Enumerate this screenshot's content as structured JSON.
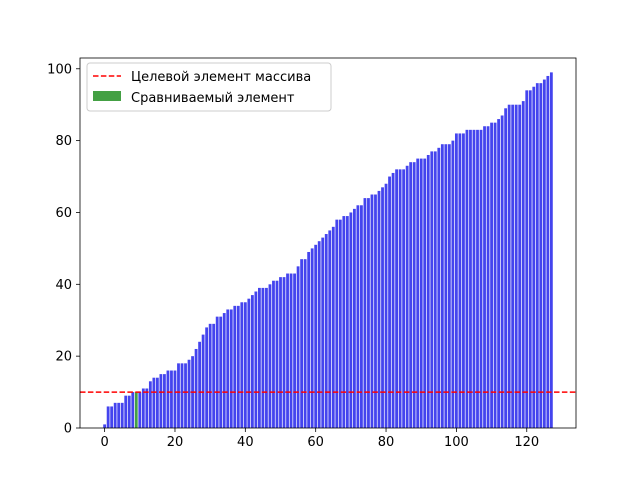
{
  "chart_data": {
    "type": "bar",
    "title": "",
    "xlabel": "",
    "ylabel": "",
    "xlim": [
      -7,
      134
    ],
    "ylim": [
      0,
      103
    ],
    "x_ticks": [
      0,
      20,
      40,
      60,
      80,
      100,
      120
    ],
    "y_ticks": [
      0,
      20,
      40,
      60,
      80,
      100
    ],
    "bar_color": "#4444ee",
    "highlight_color": "#44a044",
    "highlight_index": 9,
    "target_value": 10,
    "target_color": "#ff0000",
    "legend_position": "top-left",
    "legend": {
      "target_label": "Целевой элемент массива",
      "compared_label": "Сравниваемый элемент"
    },
    "values": [
      1,
      6,
      6,
      7,
      7,
      7,
      9,
      9,
      10,
      10,
      10,
      11,
      11,
      13,
      14,
      14,
      15,
      15,
      16,
      16,
      16,
      18,
      18,
      18,
      19,
      20,
      22,
      24,
      26,
      28,
      29,
      29,
      31,
      31,
      32,
      33,
      33,
      34,
      34,
      35,
      35,
      36,
      37,
      38,
      39,
      39,
      39,
      40,
      41,
      41,
      42,
      42,
      43,
      43,
      43,
      45,
      47,
      47,
      49,
      50,
      51,
      52,
      53,
      54,
      55,
      56,
      58,
      58,
      59,
      59,
      60,
      61,
      62,
      62,
      64,
      64,
      65,
      65,
      66,
      67,
      68,
      70,
      71,
      72,
      72,
      72,
      73,
      74,
      74,
      75,
      75,
      75,
      76,
      77,
      77,
      78,
      79,
      79,
      79,
      80,
      82,
      82,
      82,
      83,
      83,
      83,
      83,
      83,
      84,
      84,
      85,
      85,
      86,
      87,
      89,
      90,
      90,
      90,
      90,
      91,
      94,
      94,
      95,
      96,
      96,
      97,
      98,
      99
    ]
  }
}
